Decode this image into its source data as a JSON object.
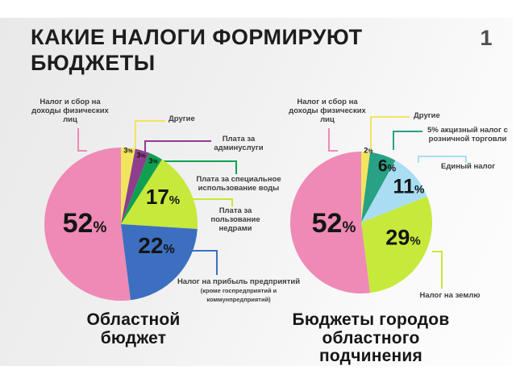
{
  "header": {
    "title": "КАКИЕ НАЛОГИ ФОРМИРУЮТ\nБЮДЖЕТЫ",
    "page_number": "1"
  },
  "chart_data": [
    {
      "type": "pie",
      "title": "Областной\nбюджет",
      "legend_position": "callout-labels-around-pie",
      "start_angle_deg": 0,
      "clockwise": true,
      "slices": [
        {
          "label": "Другие",
          "value": 3,
          "color": "#f3e45e"
        },
        {
          "label": "Плата за\nадминуслуги",
          "value": 3,
          "color": "#8e3e8c"
        },
        {
          "label": "Плата за специальное\nиспользование воды",
          "value": 3,
          "color": "#0fa051"
        },
        {
          "label": "Плата за\nпользование\nнедрами",
          "value": 17,
          "color": "#c6e93b"
        },
        {
          "label": "Налог на прибыль предприятий",
          "label_note": "(кроме госпредприятий и коммунпредприятий)",
          "value": 22,
          "color": "#3d6fc0"
        },
        {
          "label": "Налог и сбор на\nдоходы физических\nлиц",
          "value": 52,
          "color": "#ee8ab5"
        }
      ]
    },
    {
      "type": "pie",
      "title": "Бюджеты городов\nобластного\nподчинения",
      "legend_position": "callout-labels-around-pie",
      "start_angle_deg": 0,
      "clockwise": true,
      "slices": [
        {
          "label": "Другие",
          "value": 2,
          "color": "#f3e45e"
        },
        {
          "label": "5% акцизный налог с\nрозничной торговли",
          "value": 6,
          "color": "#28a184"
        },
        {
          "label": "Единый налог",
          "value": 11,
          "color": "#a9ddf3"
        },
        {
          "label": "Налог на землю",
          "value": 29,
          "color": "#c6e93b"
        },
        {
          "label": "Налог и сбор на\nдоходы физических\nлиц",
          "value": 52,
          "color": "#ee8ab5"
        }
      ]
    }
  ]
}
